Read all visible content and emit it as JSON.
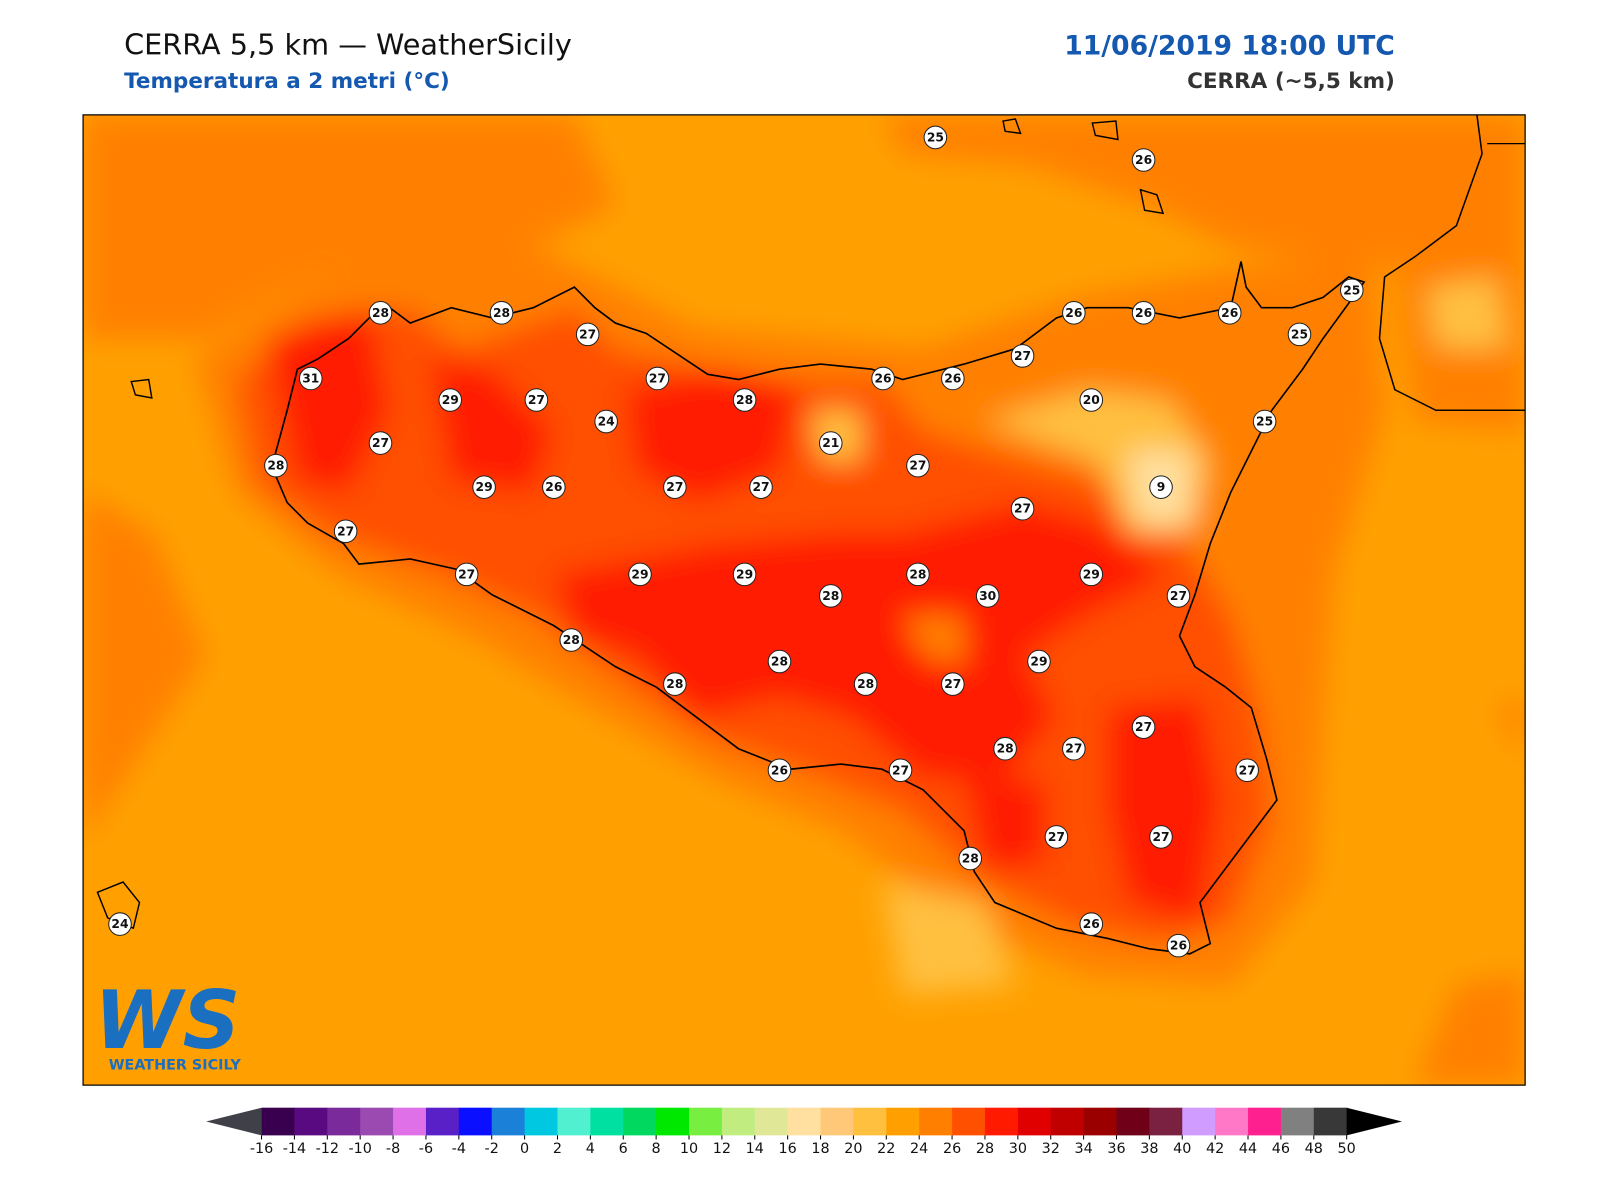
{
  "header": {
    "title": "CERRA 5,5 km — WeatherSicily",
    "subtitle": "Temperatura a 2 metri (°C)",
    "datetime": "11/06/2019 18:00 UTC",
    "model": "CERRA (~5,5 km)"
  },
  "logo": {
    "mark": "WS",
    "text": "WEATHER SICILY"
  },
  "stations": [
    25,
    26,
    28,
    28,
    27,
    26,
    26,
    26,
    25,
    25,
    27,
    31,
    27,
    26,
    26,
    29,
    27,
    28,
    20,
    24,
    25,
    27,
    21,
    28,
    27,
    29,
    26,
    27,
    27,
    9,
    27,
    27,
    27,
    29,
    29,
    28,
    29,
    28,
    30,
    27,
    28,
    29,
    28,
    28,
    28,
    27,
    27,
    28,
    27,
    27,
    26,
    27,
    27,
    27,
    28,
    24,
    26,
    26
  ],
  "colorbar": {
    "ticks": [
      -16,
      -14,
      -12,
      -10,
      -8,
      -6,
      -4,
      -2,
      0,
      2,
      4,
      6,
      8,
      10,
      12,
      14,
      16,
      18,
      20,
      22,
      24,
      26,
      28,
      30,
      32,
      34,
      36,
      38,
      40,
      42,
      44,
      46,
      48,
      50
    ],
    "colors": [
      "#3a0050",
      "#5a0a80",
      "#7a2a9a",
      "#9a4ab0",
      "#e070e8",
      "#5a20c8",
      "#0a10ff",
      "#1a80d8",
      "#00c8e0",
      "#50f0d0",
      "#00e0a0",
      "#00d860",
      "#00e800",
      "#78ee40",
      "#c0ec80",
      "#e0e898",
      "#ffe0a0",
      "#ffc878",
      "#ffc040",
      "#ffa000",
      "#ff8000",
      "#ff5000",
      "#ff1a00",
      "#e00000",
      "#c00000",
      "#9a0000",
      "#700018",
      "#7a2040",
      "#d09cff",
      "#ff78c8",
      "#ff2090",
      "#808080",
      "#383838"
    ],
    "under_color": "#404048",
    "over_color": "#000000"
  }
}
